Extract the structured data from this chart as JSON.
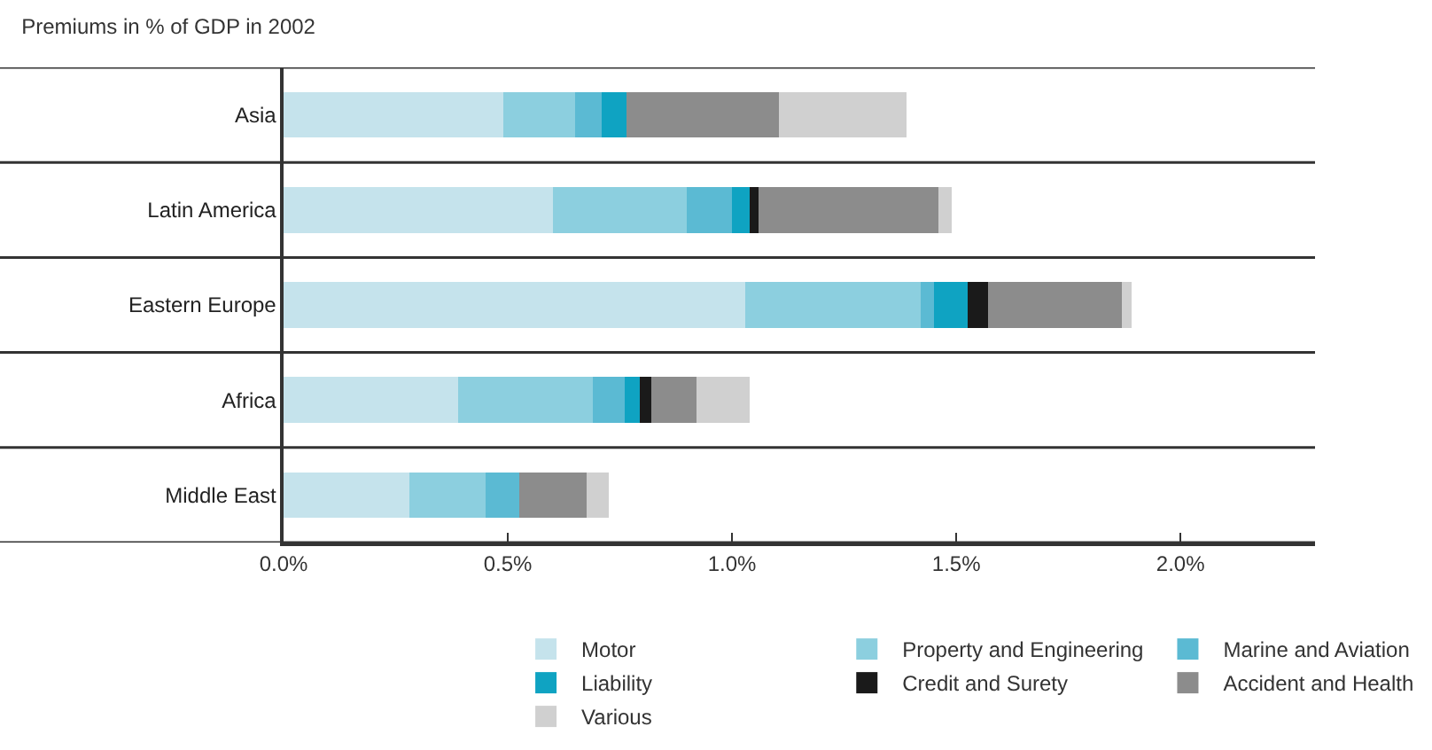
{
  "chart_data": {
    "type": "bar",
    "orientation": "horizontal",
    "stacked": true,
    "title": "Premiums in % of GDP in 2002",
    "categories": [
      "Asia",
      "Latin America",
      "Eastern Europe",
      "Africa",
      "Middle East"
    ],
    "series": [
      {
        "name": "Motor",
        "color": "#c5e3ec",
        "values": [
          0.49,
          0.6,
          1.03,
          0.39,
          0.28
        ]
      },
      {
        "name": "Property and Engineering",
        "color": "#8ccfdf",
        "values": [
          0.16,
          0.3,
          0.39,
          0.3,
          0.17
        ]
      },
      {
        "name": "Marine and Aviation",
        "color": "#5bbad3",
        "values": [
          0.06,
          0.1,
          0.03,
          0.07,
          0.075
        ]
      },
      {
        "name": "Liability",
        "color": "#0fa3c2",
        "values": [
          0.055,
          0.04,
          0.075,
          0.035,
          0.0
        ]
      },
      {
        "name": "Credit and Surety",
        "color": "#1a1a1a",
        "values": [
          0.0,
          0.02,
          0.045,
          0.025,
          0.0
        ]
      },
      {
        "name": "Accident and Health",
        "color": "#8c8c8c",
        "values": [
          0.34,
          0.4,
          0.3,
          0.1,
          0.15
        ]
      },
      {
        "name": "Various",
        "color": "#d0d0d0",
        "values": [
          0.285,
          0.03,
          0.02,
          0.12,
          0.05
        ]
      }
    ],
    "xlim": [
      0,
      2.3
    ],
    "xticks": [
      {
        "value": 0,
        "label": "0.0%"
      },
      {
        "value": 0.5,
        "label": "0.5%"
      },
      {
        "value": 1.0,
        "label": "1.0%"
      },
      {
        "value": 1.5,
        "label": "1.5%"
      },
      {
        "value": 2.0,
        "label": "2.0%"
      }
    ],
    "grid": "y",
    "legend": "bottom"
  }
}
